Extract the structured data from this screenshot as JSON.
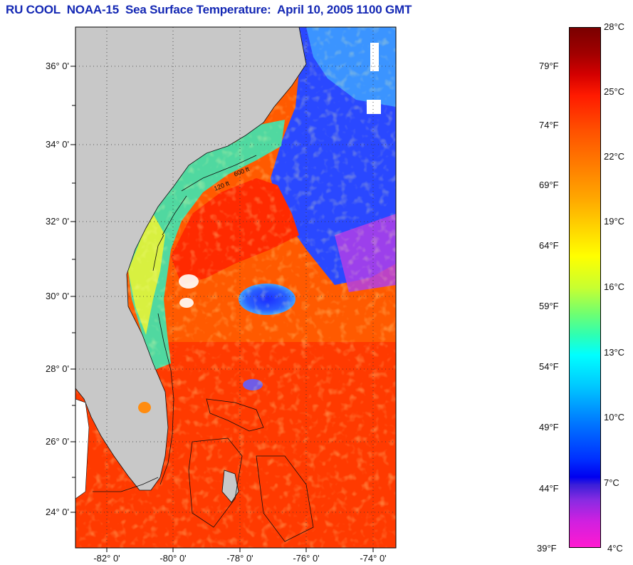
{
  "title": "RU COOL  NOAA-15  Sea Surface Temperature:  April 10, 2005 1100 GMT",
  "map": {
    "latitude_labels": [
      "36° 0'",
      "34° 0'",
      "32° 0'",
      "30° 0'",
      "28° 0'",
      "26° 0'",
      "24° 0'"
    ],
    "longitude_labels": [
      "-82° 0'",
      "-80° 0'",
      "-78° 0'",
      "-76° 0'",
      "-74° 0'"
    ],
    "contour_labels": [
      "120 ft",
      "600 ft"
    ],
    "colors": {
      "land": "#c8c8c8",
      "ocean_warm": "#ff4a00",
      "ocean_cold": "#2040ff",
      "shelf": "#40d090",
      "gulf_stream": "#ff1a00"
    }
  },
  "colorbar": {
    "fahrenheit_labels": [
      "79°F",
      "74°F",
      "69°F",
      "64°F",
      "59°F",
      "54°F",
      "49°F",
      "44°F",
      "39°F"
    ],
    "celsius_labels": [
      "28°C",
      "25°C",
      "22°C",
      "19°C",
      "16°C",
      "13°C",
      "10°C",
      "7°C",
      "4°C"
    ]
  }
}
